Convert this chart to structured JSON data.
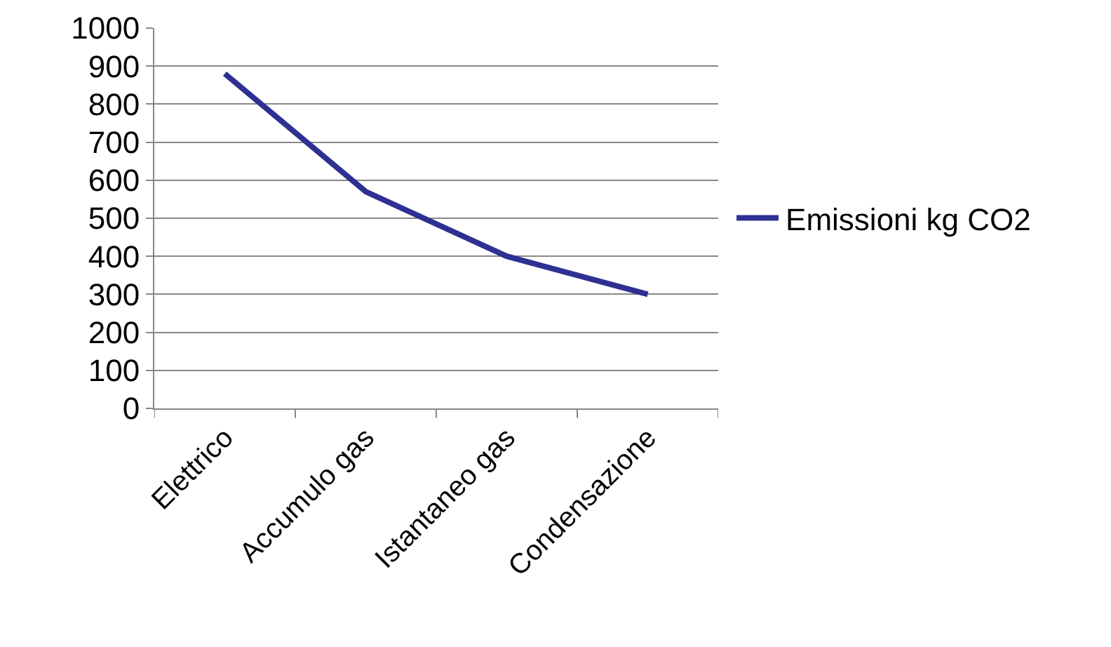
{
  "chart_data": {
    "type": "line",
    "categories": [
      "Elettrico",
      "Accumulo gas",
      "Istantaneo gas",
      "Condensazione"
    ],
    "series": [
      {
        "name": "Emissioni kg CO2",
        "color": "#2e3192",
        "values": [
          880,
          570,
          400,
          300
        ]
      }
    ],
    "ylim": [
      0,
      1000
    ],
    "yticks": [
      0,
      100,
      200,
      300,
      400,
      500,
      600,
      700,
      800,
      900,
      1000
    ],
    "grid": "y",
    "legend": "right",
    "marker": "none",
    "line_style": "solid"
  }
}
